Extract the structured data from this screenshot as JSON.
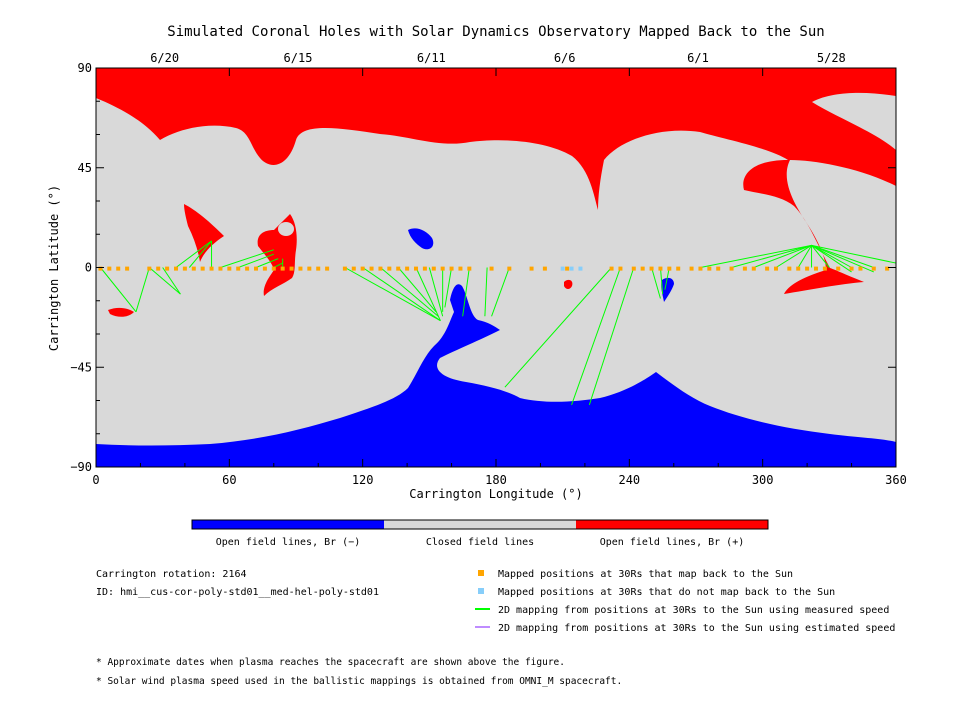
{
  "chart_data": {
    "type": "map",
    "title": "Simulated Coronal Holes with Solar Dynamics Observatory Mapped Back to the Sun",
    "xlabel": "Carrington Longitude (°)",
    "ylabel": "Carrington Latitude (°)",
    "xlim": [
      0,
      360
    ],
    "ylim": [
      -90,
      90
    ],
    "x_ticks": [
      "0",
      "60",
      "120",
      "180",
      "240",
      "300",
      "360"
    ],
    "y_ticks": [
      "90",
      "45",
      "0",
      "−45",
      "−90"
    ],
    "top_dates": [
      {
        "label": "6/20",
        "lon": 30
      },
      {
        "label": "6/15",
        "lon": 90
      },
      {
        "label": "6/11",
        "lon": 150
      },
      {
        "label": "6/6",
        "lon": 210
      },
      {
        "label": "6/1",
        "lon": 270
      },
      {
        "label": "5/28",
        "lon": 330
      }
    ],
    "colorbar": [
      {
        "label": "Open field lines, Br (−)",
        "color": "#0000ff"
      },
      {
        "label": "Closed field lines",
        "color": "#d9d9d9"
      },
      {
        "label": "Open field lines, Br (+)",
        "color": "#ff0000"
      }
    ],
    "colors": {
      "negative": "#0000ff",
      "closed": "#d9d9d9",
      "positive": "#ff0000",
      "mapped": "#ffa500",
      "unmapped": "#87cefa",
      "measured": "#00ff00",
      "estimated": "#bf8cff"
    },
    "mapped_points_lon": [
      2,
      6,
      10,
      14,
      24,
      28,
      32,
      36,
      40,
      44,
      48,
      52,
      56,
      60,
      64,
      68,
      72,
      76,
      80,
      84,
      88,
      92,
      96,
      100,
      104,
      112,
      116,
      120,
      124,
      128,
      132,
      136,
      140,
      144,
      148,
      152,
      156,
      160,
      164,
      168,
      178,
      186,
      196,
      202,
      212,
      232,
      236,
      242,
      246,
      250,
      254,
      258,
      262,
      268,
      272,
      276,
      280,
      286,
      292,
      296,
      302,
      306,
      312,
      316,
      320,
      324,
      328,
      334,
      340,
      344,
      350,
      356
    ],
    "unmapped_points_lon": [
      210,
      214,
      218
    ],
    "points_lat": -0.5,
    "field_lines": [
      [
        [
          2,
          0
        ],
        [
          18,
          -20
        ]
      ],
      [
        [
          24,
          0
        ],
        [
          18,
          -20
        ]
      ],
      [
        [
          24,
          0
        ],
        [
          38,
          -12
        ]
      ],
      [
        [
          30,
          0
        ],
        [
          38,
          -12
        ]
      ],
      [
        [
          36,
          0
        ],
        [
          52,
          12
        ]
      ],
      [
        [
          42,
          0
        ],
        [
          52,
          12
        ]
      ],
      [
        [
          52,
          0
        ],
        [
          52,
          12
        ]
      ],
      [
        [
          56,
          0
        ],
        [
          80,
          8
        ]
      ],
      [
        [
          64,
          0
        ],
        [
          80,
          6
        ]
      ],
      [
        [
          72,
          0
        ],
        [
          82,
          4
        ]
      ],
      [
        [
          80,
          0
        ],
        [
          84,
          2
        ]
      ],
      [
        [
          84,
          0
        ],
        [
          84,
          4
        ]
      ],
      [
        [
          112,
          0
        ],
        [
          155,
          -24
        ]
      ],
      [
        [
          120,
          0
        ],
        [
          155,
          -24
        ]
      ],
      [
        [
          128,
          0
        ],
        [
          154,
          -22
        ]
      ],
      [
        [
          136,
          0
        ],
        [
          153,
          -20
        ]
      ],
      [
        [
          144,
          0
        ],
        [
          155,
          -24
        ]
      ],
      [
        [
          150,
          0
        ],
        [
          156,
          -22
        ]
      ],
      [
        [
          156,
          0
        ],
        [
          156,
          -20
        ]
      ],
      [
        [
          160,
          0
        ],
        [
          157,
          -18
        ]
      ],
      [
        [
          168,
          0
        ],
        [
          165,
          -22
        ]
      ],
      [
        [
          176,
          0
        ],
        [
          175,
          -22
        ]
      ],
      [
        [
          186,
          0
        ],
        [
          178,
          -22
        ]
      ],
      [
        [
          232,
          0
        ],
        [
          184,
          -54
        ]
      ],
      [
        [
          236,
          0
        ],
        [
          214,
          -62
        ]
      ],
      [
        [
          242,
          0
        ],
        [
          222,
          -62
        ]
      ],
      [
        [
          250,
          0
        ],
        [
          254,
          -14
        ]
      ],
      [
        [
          254,
          0
        ],
        [
          255,
          -12
        ]
      ],
      [
        [
          258,
          0
        ],
        [
          256,
          -10
        ]
      ],
      [
        [
          272,
          0
        ],
        [
          322,
          10
        ]
      ],
      [
        [
          286,
          0
        ],
        [
          322,
          10
        ]
      ],
      [
        [
          296,
          0
        ],
        [
          322,
          10
        ]
      ],
      [
        [
          306,
          0
        ],
        [
          322,
          10
        ]
      ],
      [
        [
          316,
          0
        ],
        [
          322,
          10
        ]
      ],
      [
        [
          322,
          0
        ],
        [
          322,
          10
        ]
      ],
      [
        [
          330,
          0
        ],
        [
          322,
          10
        ]
      ],
      [
        [
          340,
          0
        ],
        [
          322,
          10
        ]
      ],
      [
        [
          350,
          0
        ],
        [
          322,
          10
        ]
      ],
      [
        [
          360,
          2
        ],
        [
          322,
          10
        ]
      ],
      [
        [
          322,
          10
        ],
        [
          350,
          -2
        ]
      ],
      [
        [
          322,
          10
        ],
        [
          340,
          -2
        ]
      ]
    ],
    "annotations": {
      "rotation": "Carrington rotation: 2164",
      "id": "ID: hmi__cus-cor-poly-std01__med-hel-poly-std01",
      "note1": "* Approximate dates when plasma reaches the spacecraft are shown above the figure.",
      "note2": "* Solar wind plasma speed used in the ballistic mappings is obtained from OMNI_M spacecraft."
    },
    "legend": [
      {
        "label": "Mapped positions at 30Rs that map back to the Sun",
        "kind": "square",
        "color": "#ffa500"
      },
      {
        "label": "Mapped positions at 30Rs that do not map back to the Sun",
        "kind": "square",
        "color": "#87cefa"
      },
      {
        "label": "2D mapping from positions at 30Rs to the Sun using measured speed",
        "kind": "line",
        "color": "#00ff00"
      },
      {
        "label": "2D mapping from positions at 30Rs to the Sun using estimated speed",
        "kind": "line",
        "color": "#bf8cff"
      }
    ]
  }
}
